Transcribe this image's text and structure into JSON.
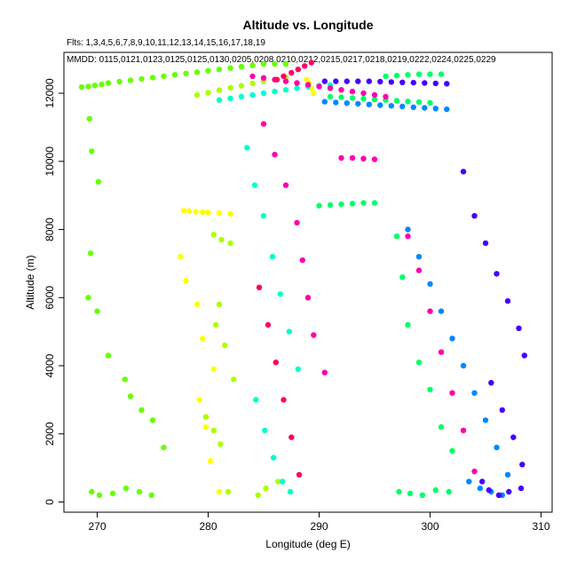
{
  "chart_data": {
    "type": "scatter",
    "title": "Altitude vs. Longitude",
    "subtitle": "Flts: 1,3,4,5,6,7,8,9,10,11,12,13,14,15,16,17,18,19",
    "legend_text": "MMDD: 0115,0121,0123,0125,0125,0130,0205,0208,0210,0212,0215,0217,0218,0219,0222,0224,0225,0229",
    "xlabel": "Longitude (deg E)",
    "ylabel": "Altitude (m)",
    "xlim": [
      267,
      311
    ],
    "ylim": [
      -300,
      13200
    ],
    "xticks": [
      270,
      280,
      290,
      300,
      310
    ],
    "yticks": [
      0,
      2000,
      4000,
      6000,
      8000,
      10000,
      12000
    ],
    "grid": false,
    "series": [
      {
        "color": "#66ff00",
        "x": [
          268.6,
          269.2,
          269.8,
          270.4,
          271,
          272,
          273,
          274,
          275,
          276,
          277,
          278,
          279,
          280,
          281,
          282,
          283,
          284,
          285,
          286,
          287,
          269.3,
          269.5,
          270.1,
          269.4,
          269.2,
          270,
          271,
          272.5,
          273,
          274,
          275,
          276,
          269.5,
          270.2,
          271.4,
          272.6,
          273.8,
          274.9
        ],
        "y": [
          12180,
          12200,
          12230,
          12260,
          12300,
          12340,
          12380,
          12420,
          12460,
          12500,
          12540,
          12580,
          12620,
          12660,
          12700,
          12740,
          12780,
          12820,
          12860,
          12860,
          12860,
          11250,
          10300,
          9400,
          7300,
          6000,
          5600,
          4300,
          3600,
          3100,
          2700,
          2400,
          1600,
          300,
          200,
          250,
          400,
          300,
          200
        ]
      },
      {
        "color": "#aaff00",
        "x": [
          279,
          280,
          281,
          282,
          283,
          284,
          285,
          286,
          287,
          280.5,
          281.2,
          282,
          281,
          280.7,
          281.5,
          282.3,
          279.8,
          280.5,
          281.1,
          281.8,
          284.5,
          285.2,
          286.3
        ],
        "y": [
          11950,
          12020,
          12090,
          12160,
          12220,
          12290,
          12350,
          12400,
          12460,
          7850,
          7700,
          7600,
          5800,
          5200,
          4600,
          3600,
          2500,
          2100,
          1700,
          300,
          200,
          400,
          600
        ]
      },
      {
        "color": "#ffff00",
        "x": [
          277.8,
          278.3,
          278.9,
          279.5,
          280,
          281,
          282,
          277.5,
          278,
          279,
          279.5,
          280.5,
          288.9,
          289.1,
          289.3,
          289.5,
          279.2,
          279.8,
          280.2,
          281
        ],
        "y": [
          8550,
          8540,
          8520,
          8510,
          8500,
          8480,
          8460,
          7200,
          6500,
          5800,
          4800,
          3900,
          12400,
          12300,
          12150,
          12000,
          3000,
          2200,
          1200,
          300
        ]
      },
      {
        "color": "#00ff66",
        "x": [
          290,
          291,
          292,
          293,
          294,
          295,
          296,
          297,
          298,
          299,
          300,
          301,
          291,
          292,
          293,
          294,
          295,
          296,
          297,
          298,
          299,
          300,
          297,
          297.5,
          298,
          299,
          300,
          301,
          302,
          297.2,
          298.2,
          299.3,
          300.5,
          301.7
        ],
        "y": [
          8700,
          8720,
          8740,
          8760,
          8780,
          8780,
          12500,
          12520,
          12540,
          12560,
          12560,
          12560,
          11900,
          11880,
          11860,
          11840,
          11820,
          11800,
          11780,
          11760,
          11740,
          11720,
          7800,
          6600,
          5200,
          4100,
          3300,
          2200,
          1500,
          300,
          250,
          200,
          350,
          300
        ]
      },
      {
        "color": "#00ffcc",
        "x": [
          281,
          282,
          283,
          284,
          285,
          286,
          287,
          288,
          289,
          290,
          291,
          283.5,
          284.2,
          285,
          285.8,
          286.5,
          287.3,
          288.1,
          284.3,
          285.1,
          285.9,
          286.7,
          287.4
        ],
        "y": [
          11800,
          11850,
          11900,
          11950,
          12000,
          12050,
          12100,
          12150,
          12200,
          12220,
          12240,
          10400,
          9300,
          8400,
          7200,
          6100,
          5000,
          3900,
          3000,
          2100,
          1300,
          600,
          300
        ]
      },
      {
        "color": "#ff00aa",
        "x": [
          284,
          285,
          286,
          287,
          288,
          289,
          290,
          291,
          292,
          293,
          294,
          295,
          296,
          285,
          286,
          287,
          288,
          288.5,
          289,
          289.5,
          290.5,
          292,
          293,
          294,
          295,
          298,
          299,
          300,
          301,
          302,
          303,
          304
        ],
        "y": [
          12500,
          12450,
          12400,
          12350,
          12300,
          12250,
          12200,
          12150,
          12100,
          12050,
          12000,
          11950,
          11900,
          11100,
          10200,
          9300,
          8200,
          7100,
          6000,
          4900,
          3800,
          10100,
          10100,
          10080,
          10060,
          7800,
          6800,
          5600,
          4400,
          3200,
          2100,
          900
        ]
      },
      {
        "color": "#ff0066",
        "x": [
          286.2,
          286.8,
          287.5,
          288.1,
          288.7,
          289.3,
          284.6,
          285.4,
          286.1,
          286.8,
          287.5,
          288.2
        ],
        "y": [
          12400,
          12500,
          12600,
          12700,
          12800,
          12900,
          6300,
          5200,
          4100,
          3000,
          1900,
          800
        ]
      },
      {
        "color": "#0088ff",
        "x": [
          290.5,
          291.5,
          292.5,
          293.5,
          294.5,
          295.5,
          296.5,
          297.5,
          298.5,
          299.5,
          300.5,
          301.5,
          298,
          299,
          300,
          301,
          302,
          303,
          304,
          305,
          306,
          307,
          303.5,
          304.5,
          305.5,
          306.5
        ],
        "y": [
          11750,
          11730,
          11710,
          11690,
          11670,
          11650,
          11630,
          11610,
          11590,
          11570,
          11550,
          11530,
          8000,
          7200,
          6400,
          5600,
          4800,
          4000,
          3200,
          2400,
          1600,
          800,
          600,
          400,
          300,
          200
        ]
      },
      {
        "color": "#4400ff",
        "x": [
          290.5,
          291.5,
          292.5,
          293.5,
          294.5,
          295.5,
          296.5,
          297.5,
          298.5,
          299.5,
          300.5,
          301.5,
          303,
          304,
          305,
          306,
          307,
          308,
          308.5,
          305.5,
          306.5,
          307.5,
          308.3,
          304.7,
          305.3,
          306.2,
          307.1,
          308.2
        ],
        "y": [
          12350,
          12350,
          12350,
          12350,
          12350,
          12340,
          12330,
          12320,
          12310,
          12300,
          12290,
          12280,
          9700,
          8400,
          7600,
          6700,
          5900,
          5100,
          4300,
          3500,
          2700,
          1900,
          1100,
          600,
          350,
          200,
          300,
          400
        ]
      }
    ]
  }
}
